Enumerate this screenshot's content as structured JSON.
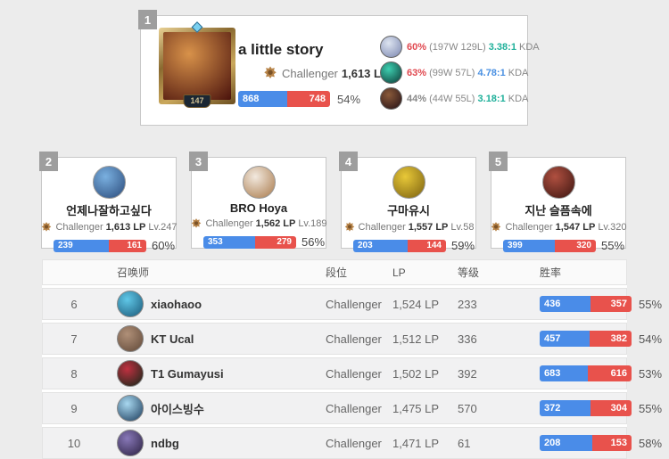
{
  "colors": {
    "win_blue": "#4a8ce8",
    "loss_red": "#e8524c",
    "winrate_red": "#e0484f",
    "winrate_gray": "#888888",
    "kda_teal": "#1fb09a",
    "kda_blue": "#4a90e2"
  },
  "top_player": {
    "rank": "1",
    "name": "a little story",
    "level": "147",
    "tier": "Challenger",
    "lp": "1,613 LP",
    "wins": 868,
    "losses": 748,
    "winrate": "54%",
    "avatar_colors": [
      "#d8924a",
      "#4a120c"
    ],
    "kda_label": "KDA",
    "champions": [
      {
        "winrate": "60%",
        "winrate_color": "#e0484f",
        "record": "(197W 129L)",
        "kda": "3.38:1",
        "kda_color": "#1fb09a",
        "avatar_colors": [
          "#dde4f0",
          "#7a86b0"
        ]
      },
      {
        "winrate": "63%",
        "winrate_color": "#e0484f",
        "record": "(99W 57L)",
        "kda": "4.78:1",
        "kda_color": "#4a90e2",
        "avatar_colors": [
          "#3ecfb0",
          "#0b3a36"
        ]
      },
      {
        "winrate": "44%",
        "winrate_color": "#888888",
        "record": "(44W 55L)",
        "kda": "3.18:1",
        "kda_color": "#1fb09a",
        "avatar_colors": [
          "#8a5a3a",
          "#231016"
        ]
      }
    ]
  },
  "cards": [
    {
      "rank": "2",
      "name": "언제나잘하고싶다",
      "tier": "Challenger",
      "lp": "1,613 LP",
      "level_label": "Lv.247",
      "wins": 239,
      "losses": 161,
      "winrate": "60%",
      "avatar_colors": [
        "#7ab0e0",
        "#2a4a7a"
      ]
    },
    {
      "rank": "3",
      "name": "BRO Hoya",
      "tier": "Challenger",
      "lp": "1,562 LP",
      "level_label": "Lv.189",
      "wins": 353,
      "losses": 279,
      "winrate": "56%",
      "avatar_colors": [
        "#f2e9df",
        "#a87848"
      ]
    },
    {
      "rank": "4",
      "name": "구마유시",
      "tier": "Challenger",
      "lp": "1,557 LP",
      "level_label": "Lv.58",
      "wins": 203,
      "losses": 144,
      "winrate": "59%",
      "avatar_colors": [
        "#e8c838",
        "#7a6010"
      ]
    },
    {
      "rank": "5",
      "name": "지난 슬픔속에",
      "tier": "Challenger",
      "lp": "1,547 LP",
      "level_label": "Lv.320",
      "wins": 399,
      "losses": 320,
      "winrate": "55%",
      "avatar_colors": [
        "#b05040",
        "#3a1410"
      ]
    }
  ],
  "table": {
    "headers": {
      "summoner": "召唤师",
      "tier": "段位",
      "lp": "LP",
      "level": "等级",
      "winrate": "胜率"
    },
    "rows": [
      {
        "rank": "6",
        "name": "xiaohaoo",
        "tier": "Challenger",
        "lp": "1,524 LP",
        "level": "233",
        "wins": 436,
        "losses": 357,
        "winrate": "55%",
        "avatar_colors": [
          "#60c8e8",
          "#1a5878"
        ]
      },
      {
        "rank": "7",
        "name": "KT Ucal",
        "tier": "Challenger",
        "lp": "1,512 LP",
        "level": "336",
        "wins": 457,
        "losses": 382,
        "winrate": "54%",
        "avatar_colors": [
          "#b09078",
          "#604838"
        ]
      },
      {
        "rank": "8",
        "name": "T1 Gumayusi",
        "tier": "Challenger",
        "lp": "1,502 LP",
        "level": "392",
        "wins": 683,
        "losses": 616,
        "winrate": "53%",
        "avatar_colors": [
          "#c03040",
          "#102818"
        ]
      },
      {
        "rank": "9",
        "name": "아이스빙수",
        "tier": "Challenger",
        "lp": "1,475 LP",
        "level": "570",
        "wins": 372,
        "losses": 304,
        "winrate": "55%",
        "avatar_colors": [
          "#a8d8f0",
          "#1a3a5a"
        ]
      },
      {
        "rank": "10",
        "name": "ndbg",
        "tier": "Challenger",
        "lp": "1,471 LP",
        "level": "61",
        "wins": 208,
        "losses": 153,
        "winrate": "58%",
        "avatar_colors": [
          "#8878b8",
          "#2a2040"
        ]
      }
    ]
  }
}
